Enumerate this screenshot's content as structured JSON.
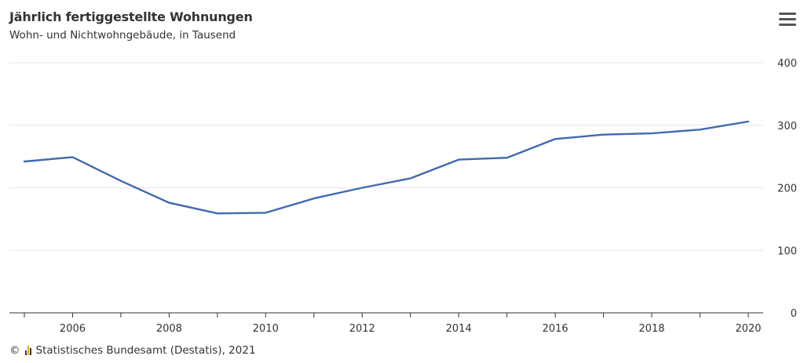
{
  "title": "Jährlich fertiggestellte Wohnungen",
  "subtitle": "Wohn- und Nichtwohngebäude, in Tausend",
  "footer": {
    "copyright_symbol": "©",
    "source": "Statistisches Bundesamt (Destatis), 2021"
  },
  "menu": {
    "icon": "hamburger-menu-icon"
  },
  "colors": {
    "line": "#4169b0",
    "grid": "#e6e6e6",
    "axis": "#333333"
  },
  "chart_data": {
    "type": "line",
    "title": "Jährlich fertiggestellte Wohnungen",
    "subtitle": "Wohn- und Nichtwohngebäude, in Tausend",
    "xlabel": "",
    "ylabel": "",
    "x": [
      2005,
      2006,
      2007,
      2008,
      2009,
      2010,
      2011,
      2012,
      2013,
      2014,
      2015,
      2016,
      2017,
      2018,
      2019,
      2020
    ],
    "series": [
      {
        "values": [
          242,
          249,
          211,
          176,
          159,
          160,
          183,
          200,
          215,
          245,
          248,
          278,
          285,
          287,
          293,
          306
        ]
      }
    ],
    "xlim": [
      2005,
      2020
    ],
    "ylim": [
      0,
      400
    ],
    "x_ticks": [
      "2006",
      "2008",
      "2010",
      "2012",
      "2014",
      "2016",
      "2018",
      "2020"
    ],
    "y_ticks": [
      "0",
      "100",
      "200",
      "300",
      "400"
    ],
    "y_axis_side": "right",
    "grid": true,
    "legend": "none"
  }
}
